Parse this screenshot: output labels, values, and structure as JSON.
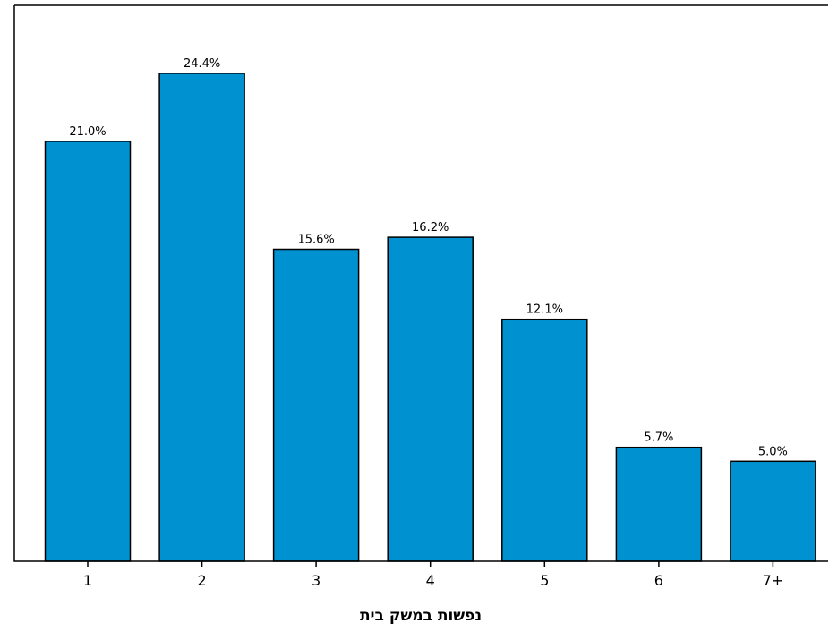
{
  "chart_data": {
    "type": "bar",
    "categories": [
      "1",
      "2",
      "3",
      "4",
      "5",
      "6",
      "7+"
    ],
    "values": [
      21.0,
      24.4,
      15.6,
      16.2,
      12.1,
      5.7,
      5.0
    ],
    "data_labels": [
      "21.0%",
      "24.4%",
      "15.6%",
      "16.2%",
      "12.1%",
      "5.7%",
      "5.0%"
    ],
    "title": "",
    "xlabel": "נפשות במשק בית",
    "ylabel": "",
    "ylim": [
      0,
      27.8
    ],
    "grid": false,
    "legend": "none",
    "colors": {
      "bar_fill": "#0092D0",
      "bar_stroke": "#000000",
      "frame": "#000000",
      "background": "#FFFFFF"
    }
  }
}
